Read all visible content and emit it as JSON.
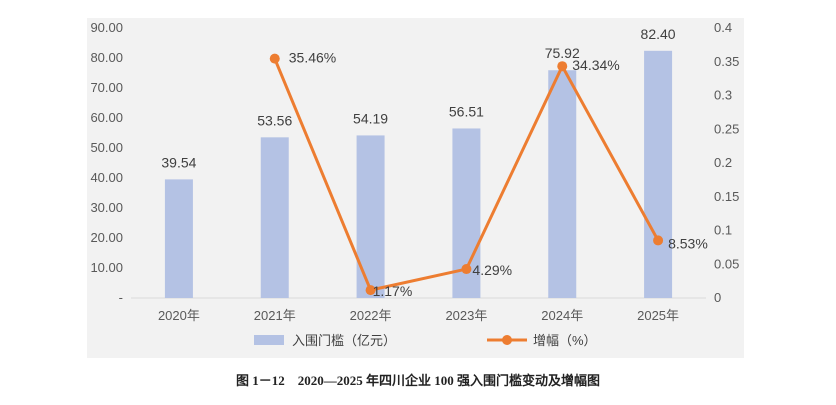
{
  "chart_data": {
    "type": "bar+line",
    "categories": [
      "2020年",
      "2021年",
      "2022年",
      "2023年",
      "2024年",
      "2025年"
    ],
    "series": [
      {
        "name": "入围门槛（亿元）",
        "type": "bar",
        "axis": "left",
        "values": [
          39.54,
          53.56,
          54.19,
          56.51,
          75.92,
          82.4
        ],
        "labels": [
          "39.54",
          "53.56",
          "54.19",
          "56.51",
          "75.92",
          "82.40"
        ],
        "color": "#b4c2e4"
      },
      {
        "name": "增幅（%）",
        "type": "line",
        "axis": "right",
        "values": [
          null,
          0.3546,
          0.0117,
          0.0429,
          0.3434,
          0.0853
        ],
        "labels": [
          "",
          "35.46%",
          "1.17%",
          "4.29%",
          "34.34%",
          "8.53%"
        ],
        "color": "#ed7d31"
      }
    ],
    "y_left": {
      "min": 0,
      "max": 90,
      "ticks": [
        0,
        10,
        20,
        30,
        40,
        50,
        60,
        70,
        80,
        90
      ],
      "tick_labels": [
        "-",
        "10.00",
        "20.00",
        "30.00",
        "40.00",
        "50.00",
        "60.00",
        "70.00",
        "80.00",
        "90.00"
      ]
    },
    "y_right": {
      "min": 0,
      "max": 0.4,
      "ticks": [
        0,
        0.05,
        0.1,
        0.15,
        0.2,
        0.25,
        0.3,
        0.35,
        0.4
      ],
      "tick_labels": [
        "0",
        "0.05",
        "0.1",
        "0.15",
        "0.2",
        "0.25",
        "0.3",
        "0.35",
        "0.4"
      ]
    },
    "legend_position": "bottom",
    "grid": false,
    "caption": "图 1－12　2020—2025 年四川企业 100 强入围门槛变动及增幅图"
  }
}
